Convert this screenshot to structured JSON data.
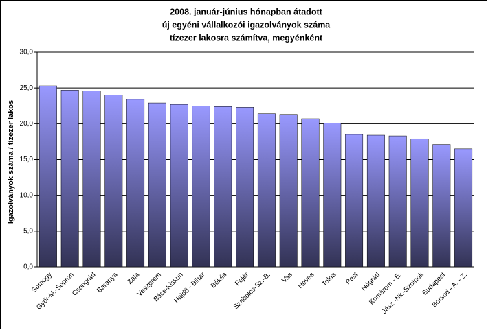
{
  "chart_data": {
    "type": "bar",
    "title": [
      "2008. január-június hónapban átadott",
      "új egyéni vállalkozói  igazolványok száma",
      "tízezer lakosra számítva, megyénként"
    ],
    "y_label": "Igazolványok száma / tízezer lakos",
    "categories": [
      "Somogy",
      "Győr-M.-Sopron",
      "Csongrád",
      "Baranya",
      "Zala",
      "Veszprém",
      "Bács-Kiskun",
      "Hajdú - Bihar",
      "Békés",
      "Fejér",
      "Szabolcs-Sz.-B.",
      "Vas",
      "Heves",
      "Tolna",
      "Pest",
      "Nógrád",
      "Komárom - E.",
      "Jász.-Nk.-Szolnok",
      "Budapest",
      "Borsod - A. - Z."
    ],
    "values": [
      25.3,
      24.7,
      24.6,
      24.0,
      23.4,
      22.9,
      22.7,
      22.5,
      22.4,
      22.3,
      21.4,
      21.3,
      20.7,
      20.1,
      18.5,
      18.4,
      18.3,
      17.9,
      17.1,
      16.5
    ],
    "color": "#9999ff",
    "ylim": [
      0,
      30
    ],
    "yticks": [
      {
        "value": 0,
        "label": "0,0"
      },
      {
        "value": 5,
        "label": "5,0"
      },
      {
        "value": 10,
        "label": "10,0"
      },
      {
        "value": 15,
        "label": "15,0"
      },
      {
        "value": 20,
        "label": "20,0"
      },
      {
        "value": 25,
        "label": "25,0"
      },
      {
        "value": 30,
        "label": "30,0"
      }
    ],
    "grid": true
  }
}
